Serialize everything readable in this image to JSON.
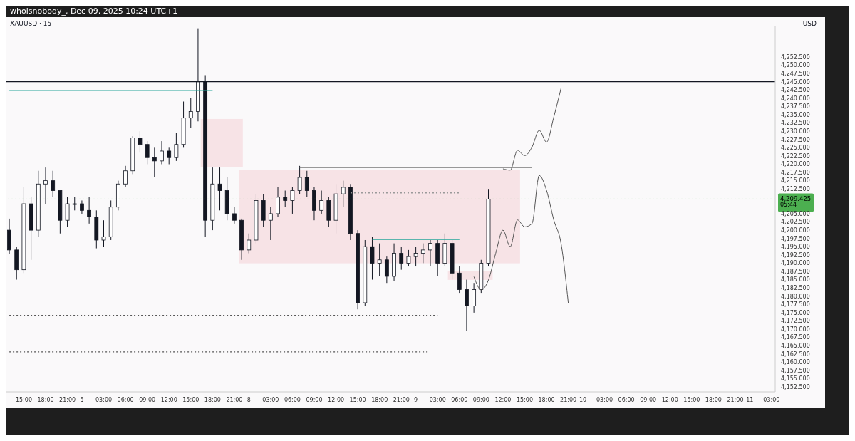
{
  "chart_data": {
    "type": "candlestick",
    "title": "XAUUSD · 15",
    "subtitle": "whoisnobody_, Dec 09, 2025 10:24 UTC+1",
    "ylabel": "USD",
    "annotations": [
      "05:44"
    ],
    "color": "#131722",
    "categories": [
      null,
      null,
      "15:00",
      null,
      null,
      "18:00",
      null,
      null,
      "21:00",
      null,
      "5",
      null,
      null,
      "03:00",
      null,
      null,
      "06:00",
      null,
      null,
      "09:00",
      null,
      null,
      "12:00",
      null,
      null,
      "15:00",
      null,
      null,
      "18:00",
      null,
      null,
      "21:00",
      null,
      "8",
      null,
      null,
      "03:00",
      null,
      null,
      "06:00",
      null,
      null,
      "09:00",
      null,
      null,
      "12:00",
      null,
      null,
      "15:00",
      null,
      null,
      "18:00",
      null,
      null,
      "21:00",
      null,
      "9",
      null,
      null,
      "03:00",
      null,
      null,
      "06:00",
      null,
      null,
      "09:00",
      null,
      null,
      "12:00",
      null,
      null,
      "15:00",
      null,
      null,
      "18:00",
      null,
      null,
      "21:00",
      null,
      "10",
      null,
      null,
      "03:00",
      null,
      null,
      "06:00",
      null,
      null,
      "09:00",
      null,
      null,
      "12:00",
      null,
      null,
      "15:00",
      null,
      null,
      "18:00",
      null,
      null,
      "21:00",
      null,
      "11",
      null,
      null,
      "03:00"
    ],
    "ohlc": [
      [
        4200,
        4203.5,
        4192.8,
        4194
      ],
      [
        4194,
        4195,
        4185,
        4188
      ],
      [
        4188,
        4213,
        4187,
        4208
      ],
      [
        4208,
        4210,
        4191,
        4200
      ],
      [
        4200,
        4218,
        4198,
        4214
      ],
      [
        4214,
        4219,
        4208,
        4215
      ],
      [
        4215,
        4218,
        4210,
        4212
      ],
      [
        4212,
        4212,
        4199,
        4203
      ],
      [
        4203,
        4210,
        4201,
        4208
      ],
      [
        4208,
        4210,
        4206,
        4208
      ],
      [
        4208,
        4209,
        4205,
        4206
      ],
      [
        4206,
        4210,
        4202,
        4204
      ],
      [
        4204,
        4206,
        4194.5,
        4197
      ],
      [
        4197,
        4203,
        4195,
        4198
      ],
      [
        4198,
        4209,
        4197,
        4207
      ],
      [
        4207,
        4215,
        4206,
        4214
      ],
      [
        4214,
        4219.5,
        4213,
        4218
      ],
      [
        4218,
        4228.5,
        4217,
        4228
      ],
      [
        4228,
        4230,
        4223.5,
        4226
      ],
      [
        4226,
        4227,
        4220,
        4222
      ],
      [
        4222,
        4225,
        4216,
        4221
      ],
      [
        4221,
        4227,
        4220,
        4224
      ],
      [
        4224,
        4225,
        4220,
        4222
      ],
      [
        4222,
        4229.5,
        4221,
        4226
      ],
      [
        4226,
        4239,
        4225,
        4234
      ],
      [
        4234,
        4240,
        4231,
        4236
      ],
      [
        4236,
        4261,
        4233,
        4245
      ],
      [
        4245,
        4247,
        4198,
        4203
      ],
      [
        4203,
        4219,
        4200,
        4214
      ],
      [
        4214,
        4219,
        4206,
        4212
      ],
      [
        4212,
        4216,
        4203,
        4205
      ],
      [
        4205,
        4207,
        4202,
        4203
      ],
      [
        4203,
        4203.5,
        4191,
        4194
      ],
      [
        4194,
        4199,
        4193,
        4197
      ],
      [
        4197,
        4211,
        4196,
        4209
      ],
      [
        4209,
        4211,
        4201,
        4203
      ],
      [
        4203,
        4207,
        4197,
        4205
      ],
      [
        4205,
        4213,
        4204,
        4210
      ],
      [
        4210,
        4212,
        4207,
        4209
      ],
      [
        4209,
        4213,
        4205,
        4212
      ],
      [
        4212,
        4219.5,
        4211,
        4216
      ],
      [
        4216,
        4218,
        4210,
        4212
      ],
      [
        4212,
        4213,
        4203,
        4206
      ],
      [
        4206,
        4212,
        4205,
        4209
      ],
      [
        4209,
        4210,
        4201,
        4203
      ],
      [
        4203,
        4214,
        4199,
        4211
      ],
      [
        4211,
        4215,
        4207,
        4213
      ],
      [
        4213,
        4214,
        4197,
        4199
      ],
      [
        4199,
        4200,
        4176,
        4178
      ],
      [
        4178,
        4197,
        4177,
        4195
      ],
      [
        4195,
        4198,
        4185,
        4190
      ],
      [
        4190,
        4196,
        4186,
        4191
      ],
      [
        4191,
        4192,
        4184,
        4186
      ],
      [
        4186,
        4196,
        4184.5,
        4193
      ],
      [
        4193,
        4195,
        4188,
        4190
      ],
      [
        4190,
        4194,
        4189,
        4192
      ],
      [
        4192,
        4195,
        4189,
        4193
      ],
      [
        4193,
        4196,
        4190,
        4194
      ],
      [
        4194,
        4197,
        4189,
        4196
      ],
      [
        4196,
        4197,
        4186,
        4190
      ],
      [
        4190,
        4199,
        4189,
        4196
      ],
      [
        4196,
        4197,
        4185,
        4187
      ],
      [
        4187,
        4189,
        4181,
        4182
      ],
      [
        4182,
        4185,
        4169.5,
        4177
      ],
      [
        4177,
        4184,
        4175,
        4182
      ],
      [
        4182,
        4191,
        4181,
        4190
      ],
      [
        4190,
        4212.5,
        4189,
        4209.425
      ],
      null,
      null,
      null,
      null,
      null,
      null,
      null,
      null,
      null,
      null,
      null,
      null,
      null,
      null,
      null,
      null,
      null,
      null,
      null,
      null,
      null,
      null,
      null,
      null,
      null,
      null,
      null,
      null,
      null,
      null,
      null,
      null,
      null,
      null,
      null,
      null,
      null,
      null,
      null
    ],
    "ylim": [
      4151,
      4262
    ],
    "yticks": [
      {
        "value": 4152.5,
        "label": "4,152.500"
      },
      {
        "value": 4155,
        "label": "4,155.000"
      },
      {
        "value": 4157.5,
        "label": "4,157.500"
      },
      {
        "value": 4160,
        "label": "4,160.000"
      },
      {
        "value": 4162.5,
        "label": "4,162.500"
      },
      {
        "value": 4165,
        "label": "4,165.000"
      },
      {
        "value": 4167.5,
        "label": "4,167.500"
      },
      {
        "value": 4170,
        "label": "4,170.000"
      },
      {
        "value": 4172.5,
        "label": "4,172.500"
      },
      {
        "value": 4175,
        "label": "4,175.000"
      },
      {
        "value": 4177.5,
        "label": "4,177.500"
      },
      {
        "value": 4180,
        "label": "4,180.000"
      },
      {
        "value": 4182.5,
        "label": "4,182.500"
      },
      {
        "value": 4185,
        "label": "4,185.000"
      },
      {
        "value": 4187.5,
        "label": "4,187.500"
      },
      {
        "value": 4190,
        "label": "4,190.000"
      },
      {
        "value": 4192.5,
        "label": "4,192.500"
      },
      {
        "value": 4195,
        "label": "4,195.000"
      },
      {
        "value": 4197.5,
        "label": "4,197.500"
      },
      {
        "value": 4200,
        "label": "4,200.000"
      },
      {
        "value": 4202.5,
        "label": "4,202.500"
      },
      {
        "value": 4205,
        "label": "4,205.000"
      },
      {
        "value": 4212.5,
        "label": "4,212.500"
      },
      {
        "value": 4215,
        "label": "4,215.000"
      },
      {
        "value": 4217.5,
        "label": "4,217.500"
      },
      {
        "value": 4220,
        "label": "4,220.000"
      },
      {
        "value": 4222.5,
        "label": "4,222.500"
      },
      {
        "value": 4225,
        "label": "4,225.000"
      },
      {
        "value": 4227.5,
        "label": "4,227.500"
      },
      {
        "value": 4230,
        "label": "4,230.000"
      },
      {
        "value": 4232.5,
        "label": "4,232.500"
      },
      {
        "value": 4235,
        "label": "4,235.000"
      },
      {
        "value": 4237.5,
        "label": "4,237.500"
      },
      {
        "value": 4240,
        "label": "4,240.000"
      },
      {
        "value": 4242.5,
        "label": "4,242.500"
      },
      {
        "value": 4245,
        "label": "4,245.000"
      },
      {
        "value": 4247.5,
        "label": "4,247.500"
      },
      {
        "value": 4250,
        "label": "4,250.000"
      },
      {
        "value": 4252.5,
        "label": "4,252.500"
      }
    ],
    "ref_lines": [
      {
        "axis": "y",
        "value": 4245,
        "color": "#131722",
        "line_style": "solid"
      },
      {
        "axis": "y",
        "value": 4209.425,
        "label": "4,209.425",
        "color": "#4caf50",
        "line_style": "dotted"
      },
      {
        "axis": "y",
        "value": 4242.4,
        "color": "#26a69a",
        "line_style": "solid"
      },
      {
        "axis": "y",
        "value": 4174.2,
        "color": "#555555",
        "line_style": "dotted"
      },
      {
        "axis": "y",
        "value": 4163.1,
        "color": "#555555",
        "line_style": "dotted"
      },
      {
        "axis": "y",
        "value": 4211.3,
        "color": "#999999",
        "line_style": "dotted"
      },
      {
        "axis": "y",
        "value": 4197.2,
        "color": "#26a69a",
        "line_style": "solid"
      },
      {
        "axis": "y",
        "value": 4219,
        "color": "#777777",
        "line_style": "solid"
      }
    ],
    "series": [
      {
        "type": "line",
        "color": "#555555",
        "values": [
          null,
          null,
          null,
          null,
          null,
          null,
          null,
          null,
          null,
          null,
          null,
          null,
          null,
          null,
          null,
          null,
          null,
          null,
          null,
          null,
          null,
          null,
          null,
          null,
          null,
          null,
          null,
          null,
          null,
          null,
          null,
          null,
          null,
          null,
          null,
          null,
          null,
          null,
          null,
          null,
          null,
          null,
          null,
          null,
          null,
          null,
          null,
          null,
          null,
          null,
          null,
          null,
          null,
          null,
          null,
          null,
          null,
          null,
          null,
          null,
          null,
          null,
          null,
          null,
          null,
          null,
          null,
          null,
          4218.6,
          4218.2,
          4224.2,
          4222.6,
          4225.2,
          4230.3,
          4226.7,
          4234.3,
          4243,
          null,
          null,
          null,
          null,
          null,
          null,
          null,
          null,
          null,
          null,
          null,
          null,
          null,
          null,
          null,
          null,
          null,
          null,
          null,
          null,
          null,
          null,
          null,
          null,
          null,
          null,
          null,
          null,
          null
        ]
      },
      {
        "type": "line",
        "color": "#555555",
        "values": [
          null,
          null,
          null,
          null,
          null,
          null,
          null,
          null,
          null,
          null,
          null,
          null,
          null,
          null,
          null,
          null,
          null,
          null,
          null,
          null,
          null,
          null,
          null,
          null,
          null,
          null,
          null,
          null,
          null,
          null,
          null,
          null,
          null,
          null,
          null,
          null,
          null,
          null,
          null,
          null,
          null,
          null,
          null,
          null,
          null,
          null,
          null,
          null,
          null,
          null,
          null,
          null,
          null,
          null,
          null,
          null,
          null,
          null,
          null,
          null,
          null,
          null,
          null,
          null,
          4185.9,
          4181.9,
          4184.9,
          4193,
          4200,
          4195,
          4203.1,
          4201,
          4202,
          4216.6,
          4212.1,
          4203.1,
          4196,
          4177.9,
          null,
          null,
          null,
          null,
          null,
          null,
          null,
          null,
          null,
          null,
          null,
          null,
          null,
          null,
          null,
          null,
          null,
          null,
          null,
          null,
          null,
          null,
          null,
          null,
          null,
          null,
          null,
          null
        ]
      }
    ]
  }
}
